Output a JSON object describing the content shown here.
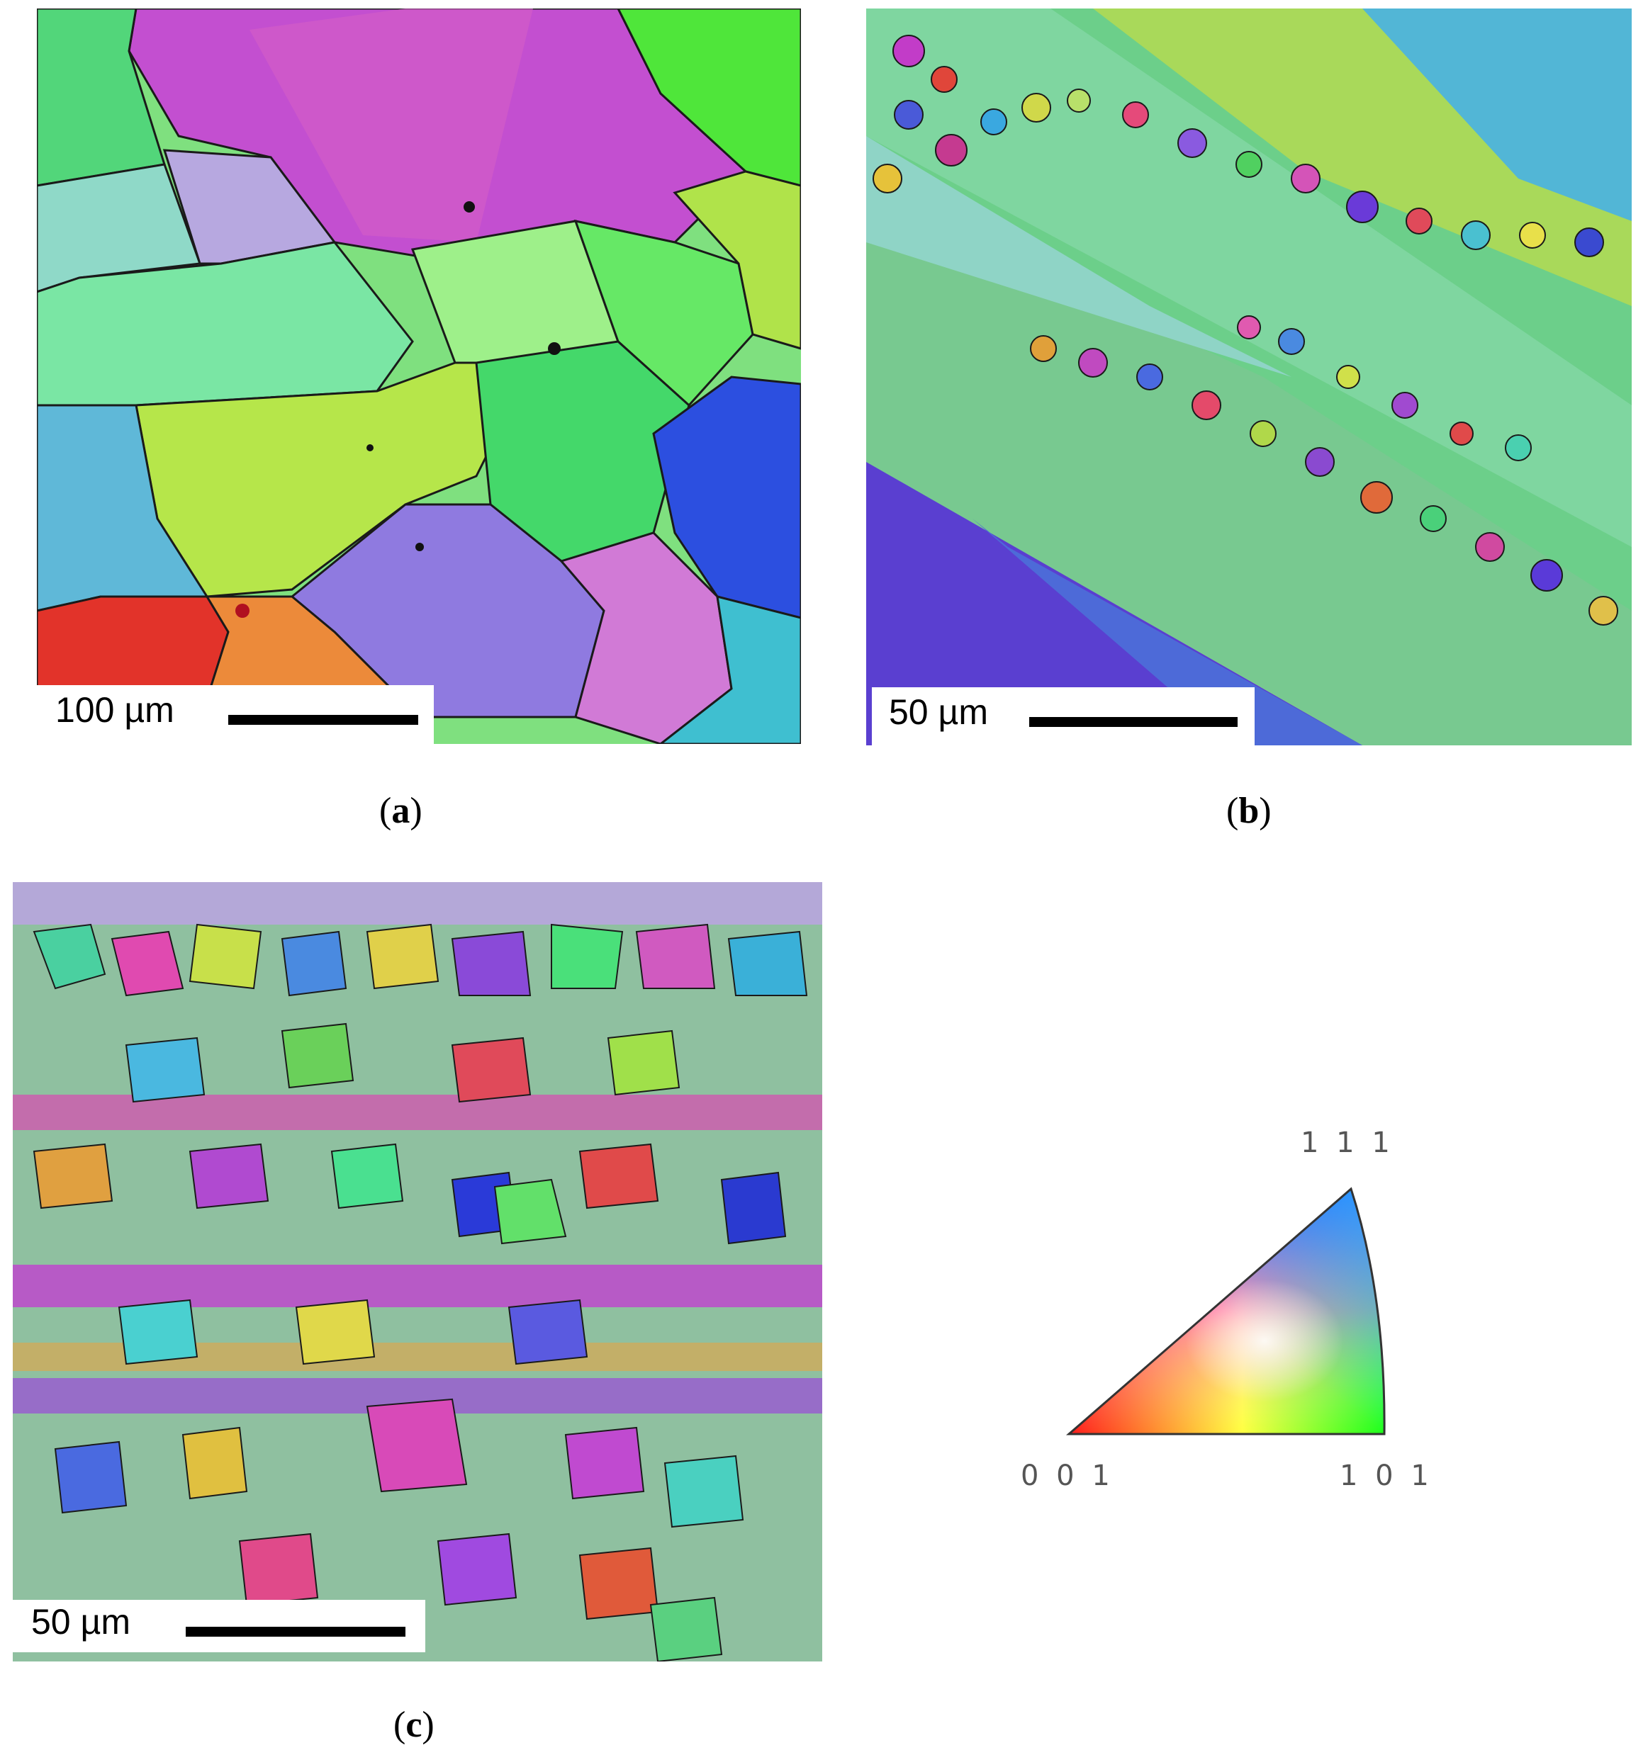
{
  "panels": [
    {
      "id": "a",
      "scale_label": "100 µm",
      "caption_letter": "a"
    },
    {
      "id": "b",
      "scale_label": "50 µm",
      "caption_letter": "b"
    },
    {
      "id": "c",
      "scale_label": "50 µm",
      "caption_letter": "c"
    }
  ],
  "ipf_key": {
    "label_001": "0 0 1",
    "label_101": "1 0 1",
    "label_111": "1 1 1",
    "colors": {
      "001": "#ff1a1a",
      "101": "#1aff1a",
      "111": "#2a2aff"
    }
  }
}
